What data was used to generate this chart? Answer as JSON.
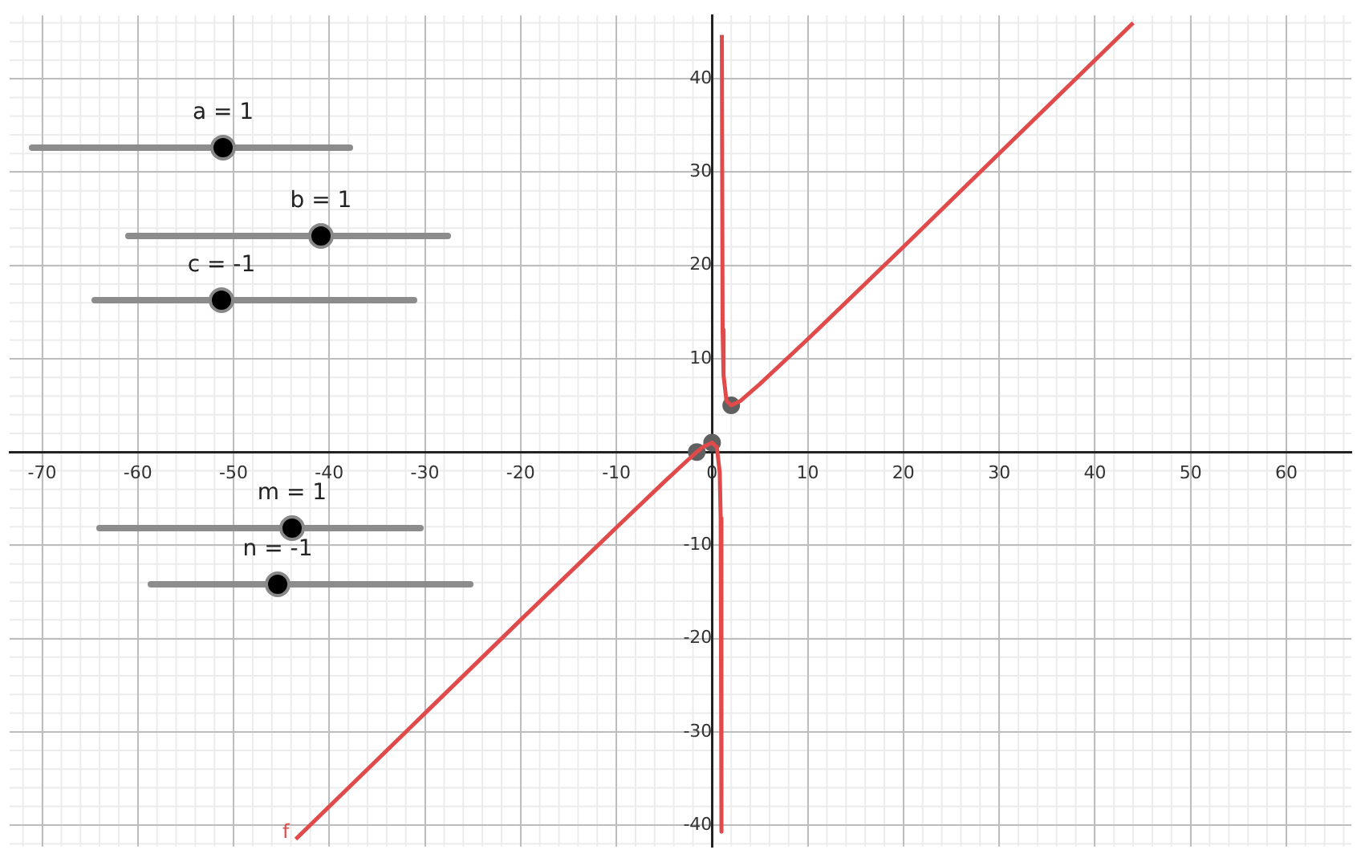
{
  "chart_data": {
    "type": "line",
    "xlim": [
      -73.4,
      66.8
    ],
    "ylim": [
      -42.3,
      46.8
    ],
    "xticks": [
      -70,
      -60,
      -50,
      -40,
      -30,
      -20,
      -10,
      0,
      10,
      20,
      30,
      40,
      50,
      60
    ],
    "yticks": [
      -40,
      -30,
      -20,
      -10,
      {
        "value": 0,
        "label": null
      },
      10,
      20,
      30,
      40
    ],
    "grid": true,
    "legend": false,
    "marker": "none",
    "line_style": "solid",
    "series": [
      {
        "name": "f",
        "color": "#e04a4a",
        "x": [
          -43.5,
          -30,
          -20,
          -10,
          -5,
          -3,
          -1.6,
          -1,
          0,
          0.5,
          0.8,
          0.9,
          0.98,
          null,
          1.02,
          1.1,
          1.2,
          1.5,
          2,
          3,
          5,
          10,
          20,
          30,
          44
        ],
        "values": [
          -41.5,
          -28,
          -18,
          -8.1,
          -3.2,
          -1.3,
          0,
          0.5,
          1,
          0.5,
          -2.2,
          -7.1,
          -40.7,
          null,
          44.7,
          13.1,
          8.2,
          5.5,
          5,
          5.5,
          7.3,
          12.1,
          22,
          32,
          46
        ]
      },
      {
        "type": "scatter",
        "color": "#606060",
        "marker": "circle",
        "x": [
          -1.6,
          0,
          2
        ],
        "values": [
          0,
          1,
          5
        ]
      }
    ],
    "annotations": [
      "a = 1",
      "b = 1",
      "c = -1",
      "m = 1",
      "n = -1"
    ]
  }
}
